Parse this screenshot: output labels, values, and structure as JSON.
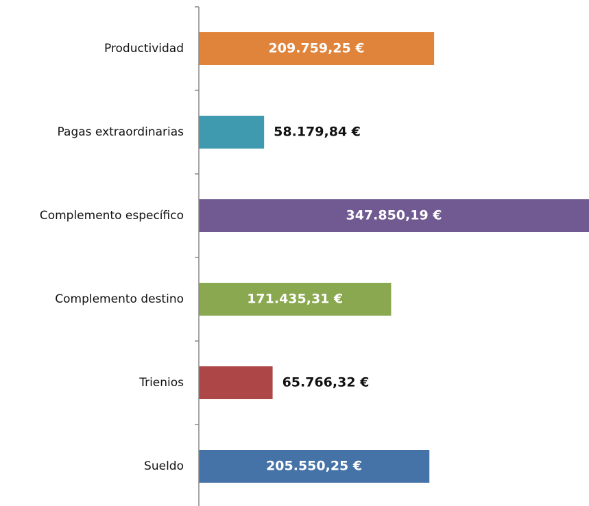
{
  "chart_data": {
    "type": "barh",
    "categories": [
      "Productividad",
      "Pagas extraordinarias",
      "Complemento específico",
      "Complemento destino",
      "Trienios",
      "Sueldo"
    ],
    "values": [
      209759.25,
      58179.84,
      347850.19,
      171435.31,
      65766.32,
      205550.25
    ],
    "value_labels": [
      "209.759,25 €",
      "58.179,84 €",
      "347.850,19 €",
      "171.435,31 €",
      "65.766,32 €",
      "205.550,25 €"
    ],
    "colors": [
      "#e0843c",
      "#3f9ab0",
      "#715a91",
      "#89a84f",
      "#ad4646",
      "#4572a7"
    ],
    "xlim": [
      0,
      347850.19
    ]
  }
}
